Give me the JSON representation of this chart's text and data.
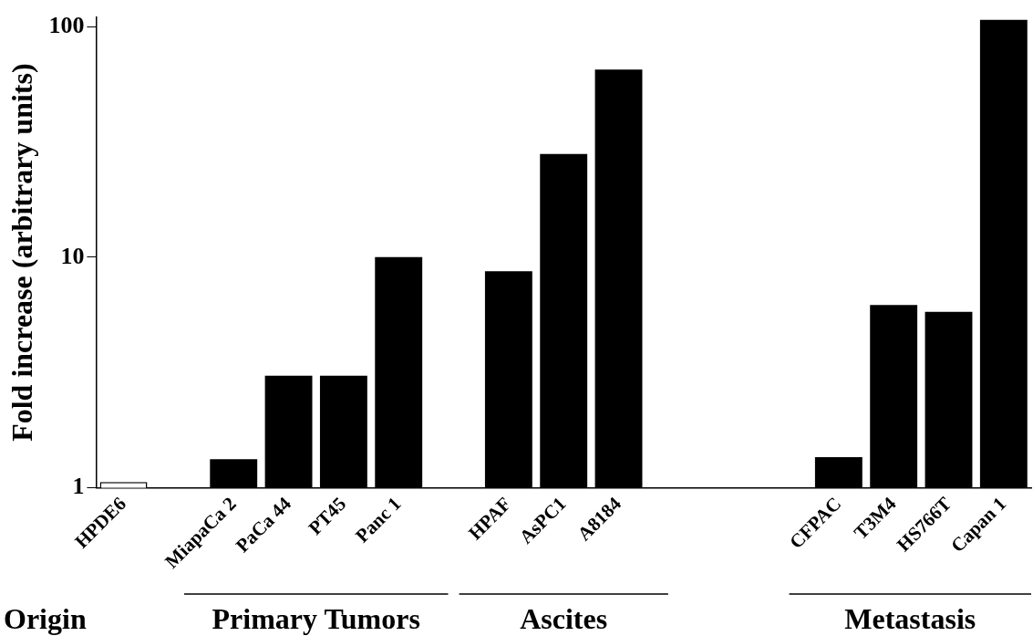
{
  "chart_data": {
    "type": "bar",
    "ylabel": "Fold increase (arbitrary units)",
    "categories": [
      "HPDE6",
      null,
      "MiapaCa 2",
      "PaCa 44",
      "PT45",
      "Panc 1",
      null,
      "HPAF",
      "AsPC1",
      "A8184",
      null,
      null,
      null,
      "CFPAC",
      "T3M4",
      "HS766T",
      "Capan 1"
    ],
    "values": [
      1.06,
      null,
      1.33,
      3.06,
      3.06,
      10,
      null,
      8.7,
      28,
      65,
      null,
      null,
      null,
      1.36,
      6.2,
      5.8,
      107
    ],
    "colors": [
      "#ffffff",
      null,
      "#000000",
      "#000000",
      "#000000",
      "#000000",
      null,
      "#000000",
      "#000000",
      "#000000",
      null,
      null,
      null,
      "#000000",
      "#000000",
      "#000000",
      "#000000"
    ],
    "log": "y",
    "ylim": [
      1,
      110
    ],
    "yticks": [
      1,
      10,
      100
    ],
    "grid": false,
    "legend": false,
    "annotations": [
      "Origin",
      "Primary Tumors",
      "Ascites",
      "Metastasis"
    ]
  }
}
